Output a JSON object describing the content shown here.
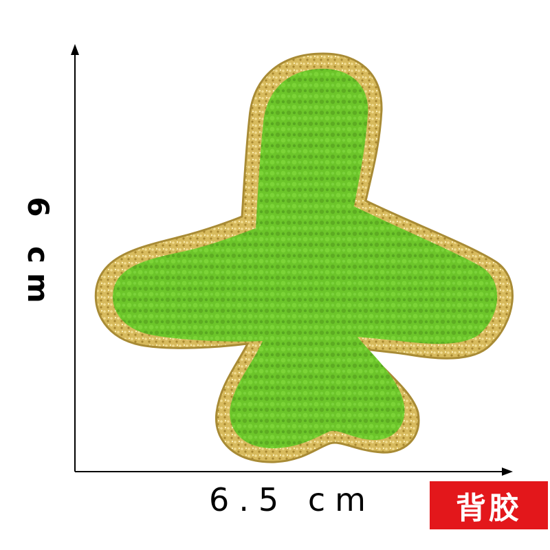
{
  "dimensions": {
    "height_label": "6 cm",
    "width_label": "6.5 cm"
  },
  "badge": {
    "text": "背胶",
    "color": "#e3171b"
  },
  "patch": {
    "depicts": "airplane",
    "fill_color": "#6cc52a",
    "border_color": "#d6b85a"
  }
}
